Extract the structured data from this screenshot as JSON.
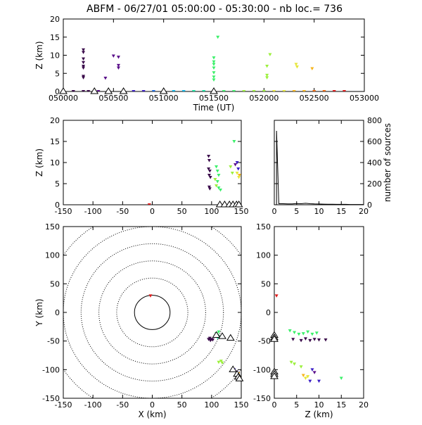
{
  "title": "ABFM - 06/27/01 05:00:00 - 05:30:00 - nb loc.=     736",
  "colors": {
    "series": [
      "#3a0a4a",
      "#5a0e8a",
      "#3b1fc6",
      "#1e6be0",
      "#12b6e6",
      "#16e0a0",
      "#3cf06a",
      "#9cf03c",
      "#e6e63a",
      "#f6b41c",
      "#f06a10",
      "#e01a1a"
    ],
    "station_marker": "#000000",
    "range_ring": "#000000"
  },
  "chart_data": [
    {
      "id": "time-height",
      "type": "scatter",
      "xlabel": "Time (UT)",
      "ylabel": "Z (km)",
      "xlim": [
        50000,
        53000
      ],
      "ylim": [
        0,
        20
      ],
      "xticks": [
        50000,
        50500,
        51000,
        51500,
        52000,
        52500,
        53000
      ],
      "xtick_labels": [
        "050000",
        "050500",
        "051000",
        "051500",
        "052000",
        "052500",
        "053000"
      ],
      "yticks": [
        0,
        5,
        10,
        15,
        20
      ],
      "points": [
        {
          "x": 50200,
          "y": 11.5,
          "c": 0
        },
        {
          "x": 50200,
          "y": 10.8,
          "c": 0
        },
        {
          "x": 50200,
          "y": 9.0,
          "c": 0
        },
        {
          "x": 50200,
          "y": 8.0,
          "c": 0
        },
        {
          "x": 50200,
          "y": 7.0,
          "c": 0
        },
        {
          "x": 50200,
          "y": 6.5,
          "c": 0
        },
        {
          "x": 50200,
          "y": 4.2,
          "c": 0
        },
        {
          "x": 50200,
          "y": 3.8,
          "c": 0
        },
        {
          "x": 50200,
          "y": 0,
          "c": 0
        },
        {
          "x": 50420,
          "y": 3.7,
          "c": 1
        },
        {
          "x": 50500,
          "y": 9.8,
          "c": 1
        },
        {
          "x": 50550,
          "y": 9.5,
          "c": 1
        },
        {
          "x": 50550,
          "y": 7.2,
          "c": 1
        },
        {
          "x": 50550,
          "y": 6.5,
          "c": 1
        },
        {
          "x": 51540,
          "y": 15.0,
          "c": 6
        },
        {
          "x": 51500,
          "y": 9.3,
          "c": 6
        },
        {
          "x": 51500,
          "y": 8.2,
          "c": 6
        },
        {
          "x": 51500,
          "y": 7.5,
          "c": 6
        },
        {
          "x": 51500,
          "y": 6.5,
          "c": 6
        },
        {
          "x": 51500,
          "y": 5.2,
          "c": 6
        },
        {
          "x": 51500,
          "y": 4.0,
          "c": 6
        },
        {
          "x": 51500,
          "y": 3.2,
          "c": 6
        },
        {
          "x": 52060,
          "y": 10.2,
          "c": 7
        },
        {
          "x": 52030,
          "y": 7.0,
          "c": 7
        },
        {
          "x": 52030,
          "y": 4.5,
          "c": 7
        },
        {
          "x": 52030,
          "y": 3.8,
          "c": 7
        },
        {
          "x": 52320,
          "y": 7.5,
          "c": 8
        },
        {
          "x": 52330,
          "y": 6.8,
          "c": 8
        },
        {
          "x": 52480,
          "y": 6.3,
          "c": 9
        },
        {
          "x": 50000,
          "y": 0,
          "c": 0
        },
        {
          "x": 50100,
          "y": 0,
          "c": 0
        },
        {
          "x": 50250,
          "y": 0,
          "c": 0
        },
        {
          "x": 50350,
          "y": 0,
          "c": 1
        },
        {
          "x": 50450,
          "y": 0,
          "c": 1
        },
        {
          "x": 50600,
          "y": 0,
          "c": 1
        },
        {
          "x": 50700,
          "y": 0,
          "c": 2
        },
        {
          "x": 50800,
          "y": 0,
          "c": 2
        },
        {
          "x": 50900,
          "y": 0,
          "c": 3
        },
        {
          "x": 51000,
          "y": 0,
          "c": 3
        },
        {
          "x": 51100,
          "y": 0,
          "c": 4
        },
        {
          "x": 51200,
          "y": 0,
          "c": 4
        },
        {
          "x": 51300,
          "y": 0,
          "c": 5
        },
        {
          "x": 51400,
          "y": 0,
          "c": 5
        },
        {
          "x": 51500,
          "y": 0,
          "c": 6
        },
        {
          "x": 51600,
          "y": 0,
          "c": 6
        },
        {
          "x": 51700,
          "y": 0,
          "c": 6
        },
        {
          "x": 51800,
          "y": 0,
          "c": 7
        },
        {
          "x": 51900,
          "y": 0,
          "c": 7
        },
        {
          "x": 52000,
          "y": 0,
          "c": 7
        },
        {
          "x": 52100,
          "y": 0,
          "c": 8
        },
        {
          "x": 52200,
          "y": 0,
          "c": 8
        },
        {
          "x": 52300,
          "y": 0,
          "c": 9
        },
        {
          "x": 52400,
          "y": 0,
          "c": 9
        },
        {
          "x": 52500,
          "y": 0,
          "c": 10
        },
        {
          "x": 52600,
          "y": 0,
          "c": 10
        },
        {
          "x": 52700,
          "y": 0,
          "c": 11
        },
        {
          "x": 52800,
          "y": 0,
          "c": 11
        }
      ],
      "stations": [
        {
          "x": 50000,
          "y": 0
        },
        {
          "x": 50310,
          "y": 0
        },
        {
          "x": 50450,
          "y": 0
        },
        {
          "x": 50600,
          "y": 0
        },
        {
          "x": 51000,
          "y": 0
        },
        {
          "x": 51500,
          "y": 0
        }
      ]
    },
    {
      "id": "x-z",
      "type": "scatter",
      "xlabel": "",
      "ylabel": "Z (km)",
      "xlim": [
        -150,
        150
      ],
      "ylim": [
        0,
        20
      ],
      "xticks": [
        -150,
        -100,
        -50,
        0,
        50,
        100,
        150
      ],
      "yticks": [
        0,
        5,
        10,
        15,
        20
      ],
      "points": [
        {
          "x": -5,
          "y": 0,
          "c": 11
        },
        {
          "x": 95,
          "y": 11.5,
          "c": 0
        },
        {
          "x": 96,
          "y": 10.5,
          "c": 0
        },
        {
          "x": 95,
          "y": 8.5,
          "c": 0
        },
        {
          "x": 97,
          "y": 8.0,
          "c": 0
        },
        {
          "x": 96,
          "y": 7.0,
          "c": 0
        },
        {
          "x": 98,
          "y": 6.5,
          "c": 0
        },
        {
          "x": 96,
          "y": 4.2,
          "c": 0
        },
        {
          "x": 97,
          "y": 3.8,
          "c": 0
        },
        {
          "x": 108,
          "y": 9.0,
          "c": 6
        },
        {
          "x": 110,
          "y": 8.0,
          "c": 6
        },
        {
          "x": 112,
          "y": 7.0,
          "c": 6
        },
        {
          "x": 110,
          "y": 5.5,
          "c": 6
        },
        {
          "x": 112,
          "y": 4.0,
          "c": 6
        },
        {
          "x": 115,
          "y": 3.5,
          "c": 6
        },
        {
          "x": 106,
          "y": 6.0,
          "c": 7
        },
        {
          "x": 108,
          "y": 4.5,
          "c": 7
        },
        {
          "x": 138,
          "y": 15.0,
          "c": 6
        },
        {
          "x": 143,
          "y": 10.0,
          "c": 2
        },
        {
          "x": 140,
          "y": 9.5,
          "c": 1
        },
        {
          "x": 145,
          "y": 8.5,
          "c": 2
        },
        {
          "x": 143,
          "y": 7.5,
          "c": 8
        },
        {
          "x": 147,
          "y": 7.0,
          "c": 9
        },
        {
          "x": 146,
          "y": 6.5,
          "c": 8
        },
        {
          "x": 132,
          "y": 9.0,
          "c": 7
        },
        {
          "x": 135,
          "y": 7.5,
          "c": 7
        }
      ],
      "stations": [
        {
          "x": 114,
          "y": 0
        },
        {
          "x": 122,
          "y": 0
        },
        {
          "x": 130,
          "y": 0
        },
        {
          "x": 136,
          "y": 0
        },
        {
          "x": 142,
          "y": 0
        },
        {
          "x": 146,
          "y": 0
        }
      ]
    },
    {
      "id": "height-histogram",
      "type": "line",
      "xlabel": "",
      "ylabel": "number of sources",
      "xlim": [
        0,
        20
      ],
      "ylim": [
        0,
        800
      ],
      "xticks": [
        0,
        5,
        10,
        15,
        20
      ],
      "yticks": [
        0,
        200,
        400,
        600,
        800
      ],
      "x": [
        0,
        0.5,
        0.5,
        1,
        2,
        3,
        4,
        5,
        6,
        7,
        8,
        9,
        10,
        11,
        12,
        13,
        14,
        15,
        16,
        17,
        18,
        19,
        20
      ],
      "values": [
        0,
        0,
        700,
        10,
        10,
        8,
        8,
        12,
        10,
        14,
        10,
        8,
        7,
        6,
        5,
        5,
        4,
        4,
        4,
        3,
        3,
        3,
        3
      ]
    },
    {
      "id": "x-y",
      "type": "scatter",
      "xlabel": "X (km)",
      "ylabel": "Y (km)",
      "xlim": [
        -150,
        150
      ],
      "ylim": [
        -150,
        150
      ],
      "xticks": [
        -150,
        -100,
        -50,
        0,
        50,
        100,
        150
      ],
      "yticks": [
        -150,
        -100,
        -50,
        0,
        50,
        100,
        150
      ],
      "rings": [
        30,
        60,
        90,
        120,
        150,
        180
      ],
      "points": [
        {
          "x": -3,
          "y": 29,
          "c": 11
        },
        {
          "x": 95,
          "y": -47,
          "c": 0
        },
        {
          "x": 98,
          "y": -49,
          "c": 0
        },
        {
          "x": 100,
          "y": -47,
          "c": 0
        },
        {
          "x": 97,
          "y": -45,
          "c": 0
        },
        {
          "x": 102,
          "y": -48,
          "c": 0
        },
        {
          "x": 108,
          "y": -37,
          "c": 6
        },
        {
          "x": 110,
          "y": -40,
          "c": 6
        },
        {
          "x": 112,
          "y": -34,
          "c": 6
        },
        {
          "x": 115,
          "y": -43,
          "c": 5
        },
        {
          "x": 110,
          "y": -44,
          "c": 5
        },
        {
          "x": 112,
          "y": -87,
          "c": 7
        },
        {
          "x": 116,
          "y": -85,
          "c": 7
        },
        {
          "x": 118,
          "y": -88,
          "c": 7
        },
        {
          "x": 138,
          "y": -100,
          "c": 2
        },
        {
          "x": 142,
          "y": -104,
          "c": 1
        },
        {
          "x": 145,
          "y": -107,
          "c": 9
        },
        {
          "x": 144,
          "y": -112,
          "c": 8
        },
        {
          "x": 147,
          "y": -115,
          "c": 8
        }
      ],
      "stations": [
        {
          "x": 108,
          "y": -40
        },
        {
          "x": 118,
          "y": -42
        },
        {
          "x": 132,
          "y": -45
        },
        {
          "x": 136,
          "y": -100
        },
        {
          "x": 143,
          "y": -108
        },
        {
          "x": 145,
          "y": -113
        },
        {
          "x": 147,
          "y": -116
        }
      ]
    },
    {
      "id": "z-y",
      "type": "scatter",
      "xlabel": "Z (km)",
      "ylabel": "",
      "xlim": [
        0,
        20
      ],
      "ylim": [
        -150,
        150
      ],
      "xticks": [
        0,
        5,
        10,
        15,
        20
      ],
      "yticks": [
        -150,
        -100,
        -50,
        0,
        50,
        100,
        150
      ],
      "points": [
        {
          "x": 0.5,
          "y": 29,
          "c": 11
        },
        {
          "x": 4.2,
          "y": -47,
          "c": 0
        },
        {
          "x": 6,
          "y": -49,
          "c": 0
        },
        {
          "x": 7,
          "y": -46,
          "c": 0
        },
        {
          "x": 8,
          "y": -49,
          "c": 0
        },
        {
          "x": 9,
          "y": -47,
          "c": 0
        },
        {
          "x": 10,
          "y": -48,
          "c": 0
        },
        {
          "x": 11.5,
          "y": -48,
          "c": 0
        },
        {
          "x": 3.5,
          "y": -32,
          "c": 6
        },
        {
          "x": 4.5,
          "y": -35,
          "c": 6
        },
        {
          "x": 5.5,
          "y": -38,
          "c": 6
        },
        {
          "x": 6.5,
          "y": -37,
          "c": 6
        },
        {
          "x": 7.5,
          "y": -34,
          "c": 6
        },
        {
          "x": 8.5,
          "y": -38,
          "c": 6
        },
        {
          "x": 9.5,
          "y": -36,
          "c": 6
        },
        {
          "x": 3.8,
          "y": -87,
          "c": 7
        },
        {
          "x": 4.5,
          "y": -90,
          "c": 7
        },
        {
          "x": 6,
          "y": -95,
          "c": 7
        },
        {
          "x": 6.5,
          "y": -110,
          "c": 9
        },
        {
          "x": 7,
          "y": -115,
          "c": 8
        },
        {
          "x": 7.5,
          "y": -112,
          "c": 8
        },
        {
          "x": 8.5,
          "y": -100,
          "c": 2
        },
        {
          "x": 9,
          "y": -105,
          "c": 1
        },
        {
          "x": 10,
          "y": -120,
          "c": 2
        },
        {
          "x": 8,
          "y": -120,
          "c": 2
        },
        {
          "x": 15,
          "y": -115,
          "c": 6
        }
      ],
      "stations": [
        {
          "x": 0,
          "y": -40
        },
        {
          "x": 0,
          "y": -44
        },
        {
          "x": 0,
          "y": -47
        },
        {
          "x": 0,
          "y": -104
        },
        {
          "x": 0,
          "y": -108
        },
        {
          "x": 0,
          "y": -112
        }
      ]
    }
  ]
}
